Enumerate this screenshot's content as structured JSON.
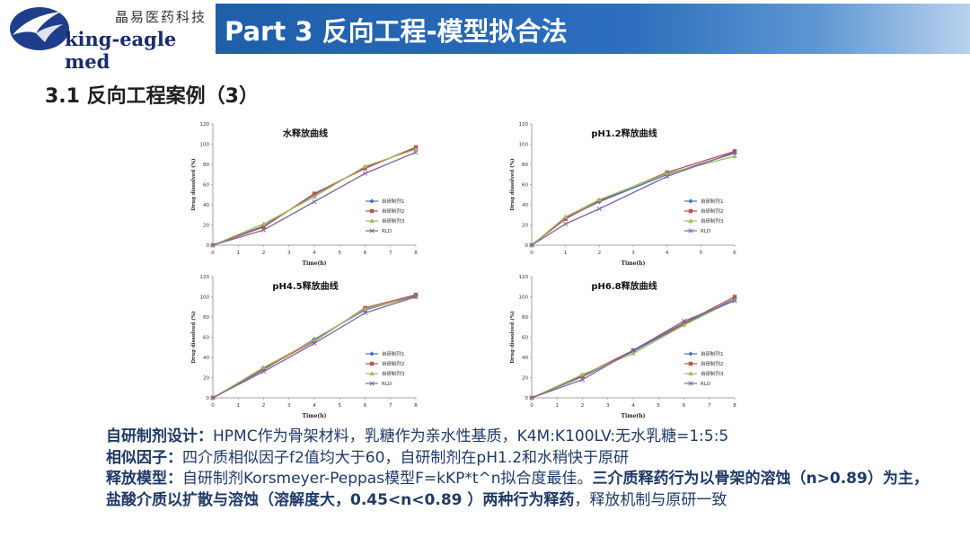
{
  "logo": {
    "company_cn": "晶易医药科技",
    "company_en": "king-eagle med",
    "brand_color": "#1a2a6e",
    "icon": "eagle-logo-icon"
  },
  "header": {
    "title": "Part 3  反向工程-模型拟合法",
    "banner_color": "#2c6fbe"
  },
  "subtitle": "3.1 反向工程案例（3）",
  "chart_data": [
    {
      "type": "line",
      "title": "水释放曲线",
      "xlabel": "Time(h)",
      "ylabel": "Drug dissolved (%)",
      "x": [
        0,
        2,
        4,
        6,
        8
      ],
      "xticks": [
        0,
        1,
        2,
        3,
        4,
        5,
        6,
        7,
        8
      ],
      "yticks": [
        0,
        20,
        40,
        60,
        80,
        100,
        120
      ],
      "xlim": [
        0,
        8
      ],
      "ylim": [
        0,
        120
      ],
      "legend_position": "right",
      "series": [
        {
          "name": "自研制剂1",
          "values": [
            0,
            19,
            50,
            77,
            96
          ],
          "color": "#4472c4",
          "marker": "diamond"
        },
        {
          "name": "自研制剂2",
          "values": [
            0,
            18,
            51,
            76,
            97
          ],
          "color": "#c0504d",
          "marker": "square"
        },
        {
          "name": "自研制剂3",
          "values": [
            0,
            21,
            48,
            78,
            95
          ],
          "color": "#9bbb59",
          "marker": "triangle"
        },
        {
          "name": "RLD",
          "values": [
            0,
            15,
            43,
            71,
            92
          ],
          "color": "#8064a2",
          "marker": "x"
        }
      ]
    },
    {
      "type": "line",
      "title": "pH1.2释放曲线",
      "xlabel": "Time(h)",
      "ylabel": "Drug dissolved (%)",
      "x": [
        0,
        1,
        2,
        4,
        6
      ],
      "xticks": [
        0,
        1,
        2,
        3,
        4,
        5,
        6
      ],
      "yticks": [
        0,
        20,
        40,
        60,
        80,
        100,
        120
      ],
      "xlim": [
        0,
        6
      ],
      "ylim": [
        0,
        120
      ],
      "legend_position": "right",
      "series": [
        {
          "name": "自研制剂1",
          "values": [
            0,
            27,
            43,
            70,
            91
          ],
          "color": "#4472c4",
          "marker": "diamond"
        },
        {
          "name": "自研制剂2",
          "values": [
            0,
            26,
            44,
            72,
            93
          ],
          "color": "#c0504d",
          "marker": "square"
        },
        {
          "name": "自研制剂3",
          "values": [
            0,
            28,
            45,
            71,
            88
          ],
          "color": "#9bbb59",
          "marker": "triangle"
        },
        {
          "name": "RLD",
          "values": [
            0,
            21,
            36,
            68,
            92
          ],
          "color": "#8064a2",
          "marker": "x"
        }
      ]
    },
    {
      "type": "line",
      "title": "pH4.5释放曲线",
      "xlabel": "Time(h)",
      "ylabel": "Drug dissolved (%)",
      "x": [
        0,
        2,
        4,
        6,
        8
      ],
      "xticks": [
        0,
        1,
        2,
        3,
        4,
        5,
        6,
        7,
        8
      ],
      "yticks": [
        0,
        20,
        40,
        60,
        80,
        100,
        120
      ],
      "xlim": [
        0,
        8
      ],
      "ylim": [
        0,
        120
      ],
      "legend_position": "right",
      "series": [
        {
          "name": "自研制剂1",
          "values": [
            0,
            28,
            58,
            87,
            101
          ],
          "color": "#4472c4",
          "marker": "diamond"
        },
        {
          "name": "自研制剂2",
          "values": [
            0,
            29,
            56,
            89,
            102
          ],
          "color": "#c0504d",
          "marker": "square"
        },
        {
          "name": "自研制剂3",
          "values": [
            0,
            30,
            57,
            88,
            100
          ],
          "color": "#9bbb59",
          "marker": "triangle"
        },
        {
          "name": "RLD",
          "values": [
            0,
            26,
            54,
            84,
            100
          ],
          "color": "#8064a2",
          "marker": "x"
        }
      ]
    },
    {
      "type": "line",
      "title": "pH6.8释放曲线",
      "xlabel": "Time(h)",
      "ylabel": "Drug dissolved (%)",
      "x": [
        0,
        2,
        4,
        6,
        8
      ],
      "xticks": [
        0,
        1,
        2,
        3,
        4,
        5,
        6,
        7,
        8
      ],
      "yticks": [
        0,
        20,
        40,
        60,
        80,
        100,
        120
      ],
      "xlim": [
        0,
        8
      ],
      "ylim": [
        0,
        120
      ],
      "legend_position": "right",
      "series": [
        {
          "name": "自研制剂1",
          "values": [
            0,
            21,
            46,
            73,
            98
          ],
          "color": "#4472c4",
          "marker": "diamond"
        },
        {
          "name": "自研制剂2",
          "values": [
            0,
            22,
            47,
            74,
            100
          ],
          "color": "#c0504d",
          "marker": "square"
        },
        {
          "name": "自研制剂3",
          "values": [
            0,
            23,
            44,
            72,
            97
          ],
          "color": "#9bbb59",
          "marker": "triangle"
        },
        {
          "name": "RLD",
          "values": [
            0,
            18,
            47,
            76,
            96
          ],
          "color": "#8064a2",
          "marker": "x"
        }
      ]
    }
  ],
  "notes": {
    "design_label": "自研制剂设计：",
    "design_text": "HPMC作为骨架材料，乳糖作为亲水性基质，K4M:K100LV:无水乳糖=1:5:5",
    "similarity_label": "相似因子：",
    "similarity_text": "四介质相似因子f2值均大于60，自研制剂在pH1.2和水稍快于原研",
    "model_label": "释放模型：",
    "model_text": "自研制剂Korsmeyer-Peppas模型F=kKP*t^n拟合度最佳。",
    "model_bold": "三介质释药行为以骨架的溶蚀（n>0.89）为主，盐酸介质以扩散与溶蚀（溶解度大，0.45<n<0.89 ）两种行为释药",
    "model_tail": "，释放机制与原研一致"
  }
}
